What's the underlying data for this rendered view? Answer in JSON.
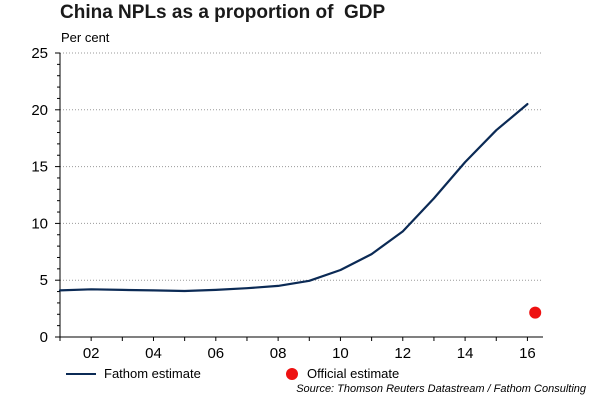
{
  "chart_data": {
    "type": "line",
    "title": "China NPLs as a proportion of  GDP",
    "ylabel": "Per cent",
    "xlabel": "",
    "ylim": [
      0,
      25
    ],
    "xlim": [
      2001,
      2016.5
    ],
    "yticks": [
      0,
      5,
      10,
      15,
      20,
      25
    ],
    "xticks": [
      {
        "x": 2002,
        "label": "02"
      },
      {
        "x": 2004,
        "label": "04"
      },
      {
        "x": 2006,
        "label": "06"
      },
      {
        "x": 2008,
        "label": "08"
      },
      {
        "x": 2010,
        "label": "10"
      },
      {
        "x": 2012,
        "label": "12"
      },
      {
        "x": 2014,
        "label": "14"
      },
      {
        "x": 2016,
        "label": "16"
      }
    ],
    "grid": true,
    "legend_position": "bottom",
    "series": [
      {
        "name": "Fathom estimate",
        "type": "line",
        "color": "#0b2a55",
        "x": [
          2001,
          2002,
          2003,
          2004,
          2005,
          2006,
          2007,
          2008,
          2009,
          2010,
          2011,
          2012,
          2013,
          2014,
          2015,
          2016
        ],
        "values": [
          4.1,
          4.2,
          4.15,
          4.1,
          4.05,
          4.15,
          4.3,
          4.5,
          4.95,
          5.9,
          7.3,
          9.3,
          12.2,
          15.4,
          18.2,
          20.5
        ]
      },
      {
        "name": "Official estimate",
        "type": "scatter",
        "color": "#ee1111",
        "x": [
          2016.25
        ],
        "values": [
          2.15
        ]
      }
    ]
  },
  "source": "Source: Thomson Reuters Datastream / Fathom Consulting"
}
